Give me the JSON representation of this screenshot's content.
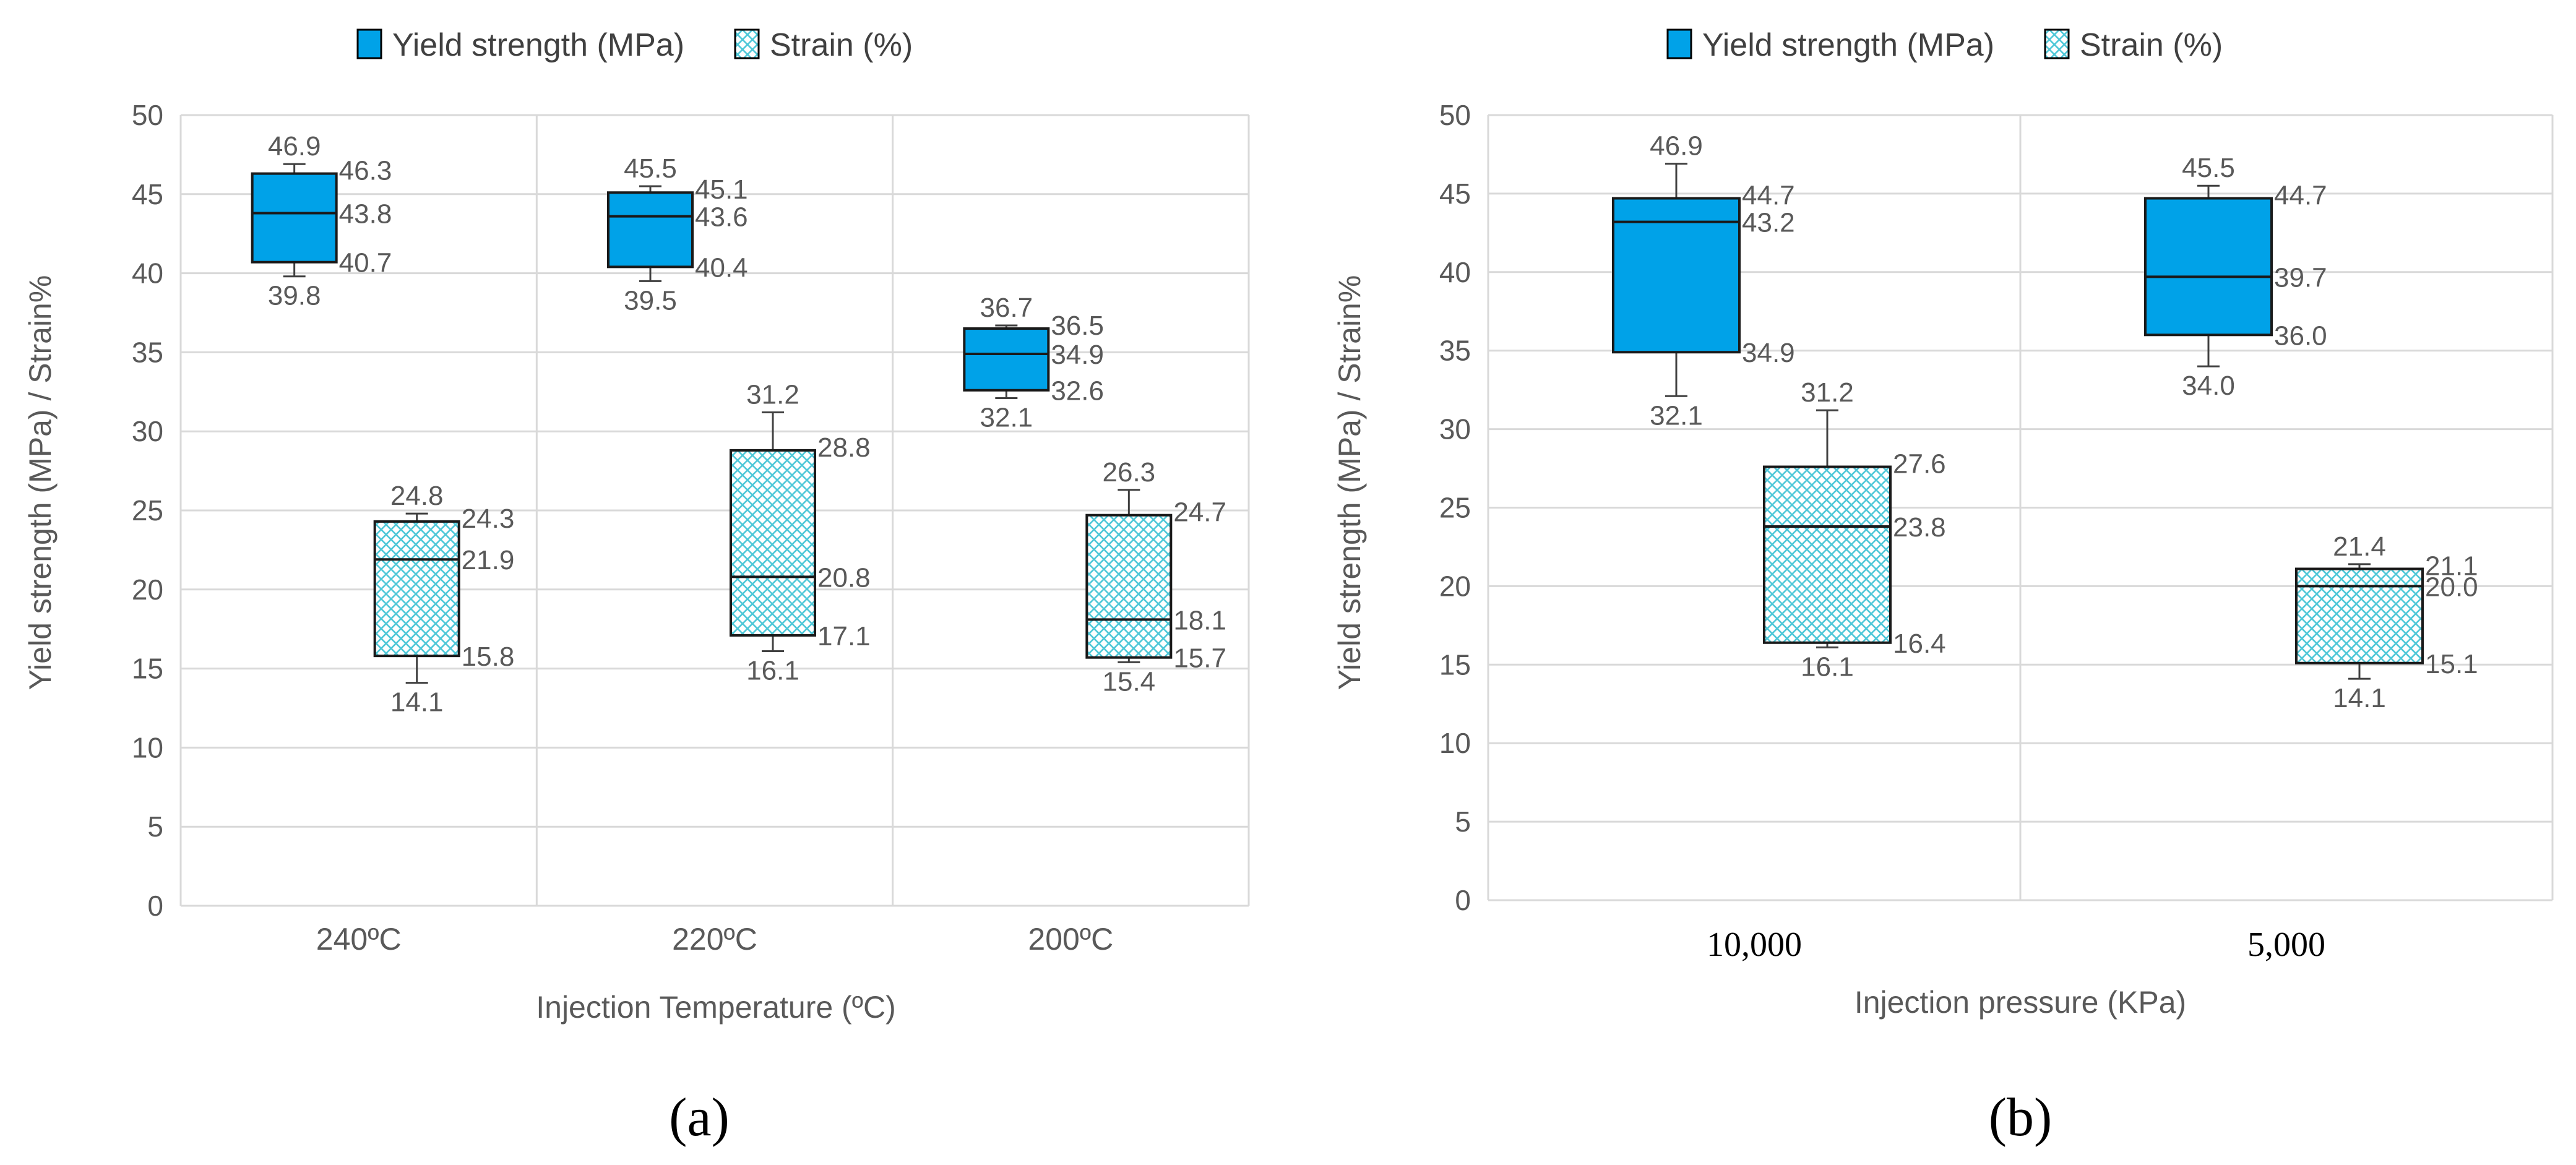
{
  "chart_data": [
    {
      "type": "box",
      "panel_label": "(a)",
      "xlabel": "Injection Temperature (ºC)",
      "ylabel": "Yield strength (MPa) / Strain%",
      "ylim": [
        0,
        50
      ],
      "yticks": [
        "0",
        "5",
        "10",
        "15",
        "20",
        "25",
        "30",
        "35",
        "40",
        "45",
        "50"
      ],
      "categories": [
        "240ºC",
        "220ºC",
        "200ºC"
      ],
      "legend": [
        "Yield strength (MPa)",
        "Strain (%)"
      ],
      "legend_position": "top",
      "series": [
        {
          "name": "Yield strength (MPa)",
          "color": "#00A2E8",
          "boxes": [
            {
              "max": 46.9,
              "q3": 46.3,
              "median": 43.8,
              "q1": 40.7,
              "min": 39.8,
              "labels": [
                "46.9",
                "46.3",
                "43.8",
                "40.7",
                "39.8"
              ]
            },
            {
              "max": 45.5,
              "q3": 45.1,
              "median": 43.6,
              "q1": 40.4,
              "min": 39.5,
              "labels": [
                "45.5",
                "45.1",
                "43.6",
                "40.4",
                "39.5"
              ]
            },
            {
              "max": 36.7,
              "q3": 36.5,
              "median": 34.9,
              "q1": 32.6,
              "min": 32.1,
              "labels": [
                "36.7",
                "36.5",
                "34.9",
                "32.6",
                "32.1"
              ]
            }
          ]
        },
        {
          "name": "Strain (%)",
          "color": "#4FC8D8",
          "boxes": [
            {
              "max": 24.8,
              "q3": 24.3,
              "median": 21.9,
              "q1": 15.8,
              "min": 14.1,
              "labels": [
                "24.8",
                "24.3",
                "21.9",
                "15.8",
                "14.1"
              ]
            },
            {
              "max": 31.2,
              "q3": 28.8,
              "median": 20.8,
              "q1": 17.1,
              "min": 16.1,
              "labels": [
                "31.2",
                "28.8",
                "20.8",
                "17.1",
                "16.1"
              ]
            },
            {
              "max": 26.3,
              "q3": 24.7,
              "median": 18.1,
              "q1": 15.7,
              "min": 15.4,
              "labels": [
                "26.3",
                "24.7",
                "18.1",
                "15.7",
                "15.4"
              ]
            }
          ]
        }
      ]
    },
    {
      "type": "box",
      "panel_label": "(b)",
      "xlabel": "Injection  pressure (KPa)",
      "ylabel": "Yield strength (MPa) / Strain%",
      "ylim": [
        0,
        50
      ],
      "yticks": [
        "0",
        "5",
        "10",
        "15",
        "20",
        "25",
        "30",
        "35",
        "40",
        "45",
        "50"
      ],
      "categories": [
        "10,000",
        "5,000"
      ],
      "legend": [
        "Yield strength (MPa)",
        "Strain (%)"
      ],
      "legend_position": "top",
      "series": [
        {
          "name": "Yield strength (MPa)",
          "color": "#00A2E8",
          "boxes": [
            {
              "max": 46.9,
              "q3": 44.7,
              "median": 43.2,
              "q1": 34.9,
              "min": 32.1,
              "labels": [
                "46.9",
                "44.7",
                "43.2",
                "34.9",
                "32.1"
              ]
            },
            {
              "max": 45.5,
              "q3": 44.7,
              "median": 39.7,
              "q1": 36.0,
              "min": 34.0,
              "labels": [
                "45.5",
                "44.7",
                "39.7",
                "36.0",
                "34.0"
              ]
            }
          ]
        },
        {
          "name": "Strain (%)",
          "color": "#4FC8D8",
          "boxes": [
            {
              "max": 31.2,
              "q3": 27.6,
              "median": 23.8,
              "q1": 16.4,
              "min": 16.1,
              "labels": [
                "31.2",
                "27.6",
                "23.8",
                "16.4",
                "16.1"
              ]
            },
            {
              "max": 21.4,
              "q3": 21.1,
              "median": 20.0,
              "q1": 15.1,
              "min": 14.1,
              "labels": [
                "21.4",
                "21.1",
                "20.0",
                "15.1",
                "14.1"
              ]
            }
          ]
        }
      ]
    }
  ]
}
